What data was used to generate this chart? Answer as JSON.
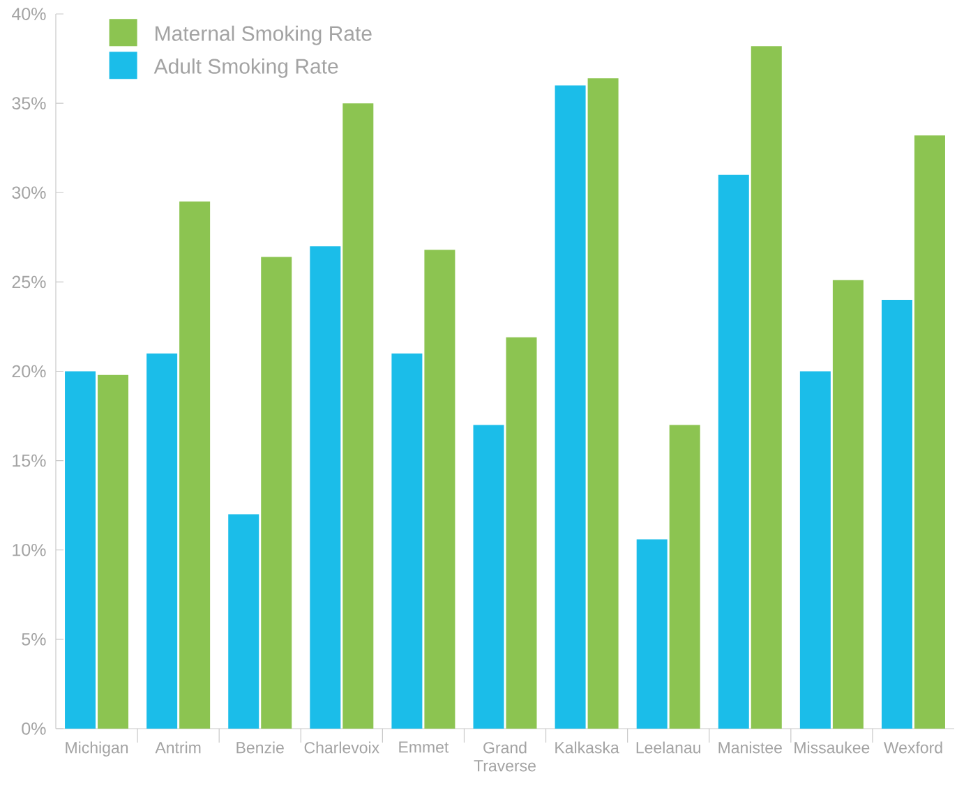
{
  "chart_data": {
    "type": "bar",
    "categories": [
      "Michigan",
      "Antrim",
      "Benzie",
      "Charlevoix",
      "Emmet",
      "Grand Traverse",
      "Kalkaska",
      "Leelanau",
      "Manistee",
      "Missaukee",
      "Wexford"
    ],
    "series": [
      {
        "name": "Adult Smoking Rate",
        "color": "#1bbde9",
        "values": [
          20.0,
          21.0,
          12.0,
          27.0,
          21.0,
          17.0,
          36.0,
          10.6,
          31.0,
          20.0,
          24.0
        ]
      },
      {
        "name": "Maternal Smoking Rate",
        "color": "#8cc451",
        "values": [
          19.8,
          29.5,
          26.4,
          35.0,
          26.8,
          21.9,
          36.4,
          17.0,
          38.2,
          25.1,
          33.2
        ]
      }
    ],
    "ylim": [
      0,
      40
    ],
    "yticks": [
      {
        "value": 0,
        "label": "0%"
      },
      {
        "value": 5,
        "label": "5%"
      },
      {
        "value": 10,
        "label": "10%"
      },
      {
        "value": 15,
        "label": "15%"
      },
      {
        "value": 20,
        "label": "20%"
      },
      {
        "value": 25,
        "label": "25%"
      },
      {
        "value": 30,
        "label": "30%"
      },
      {
        "value": 35,
        "label": "35%"
      },
      {
        "value": 40,
        "label": "40%"
      }
    ],
    "grid": false,
    "legend": "top left"
  }
}
